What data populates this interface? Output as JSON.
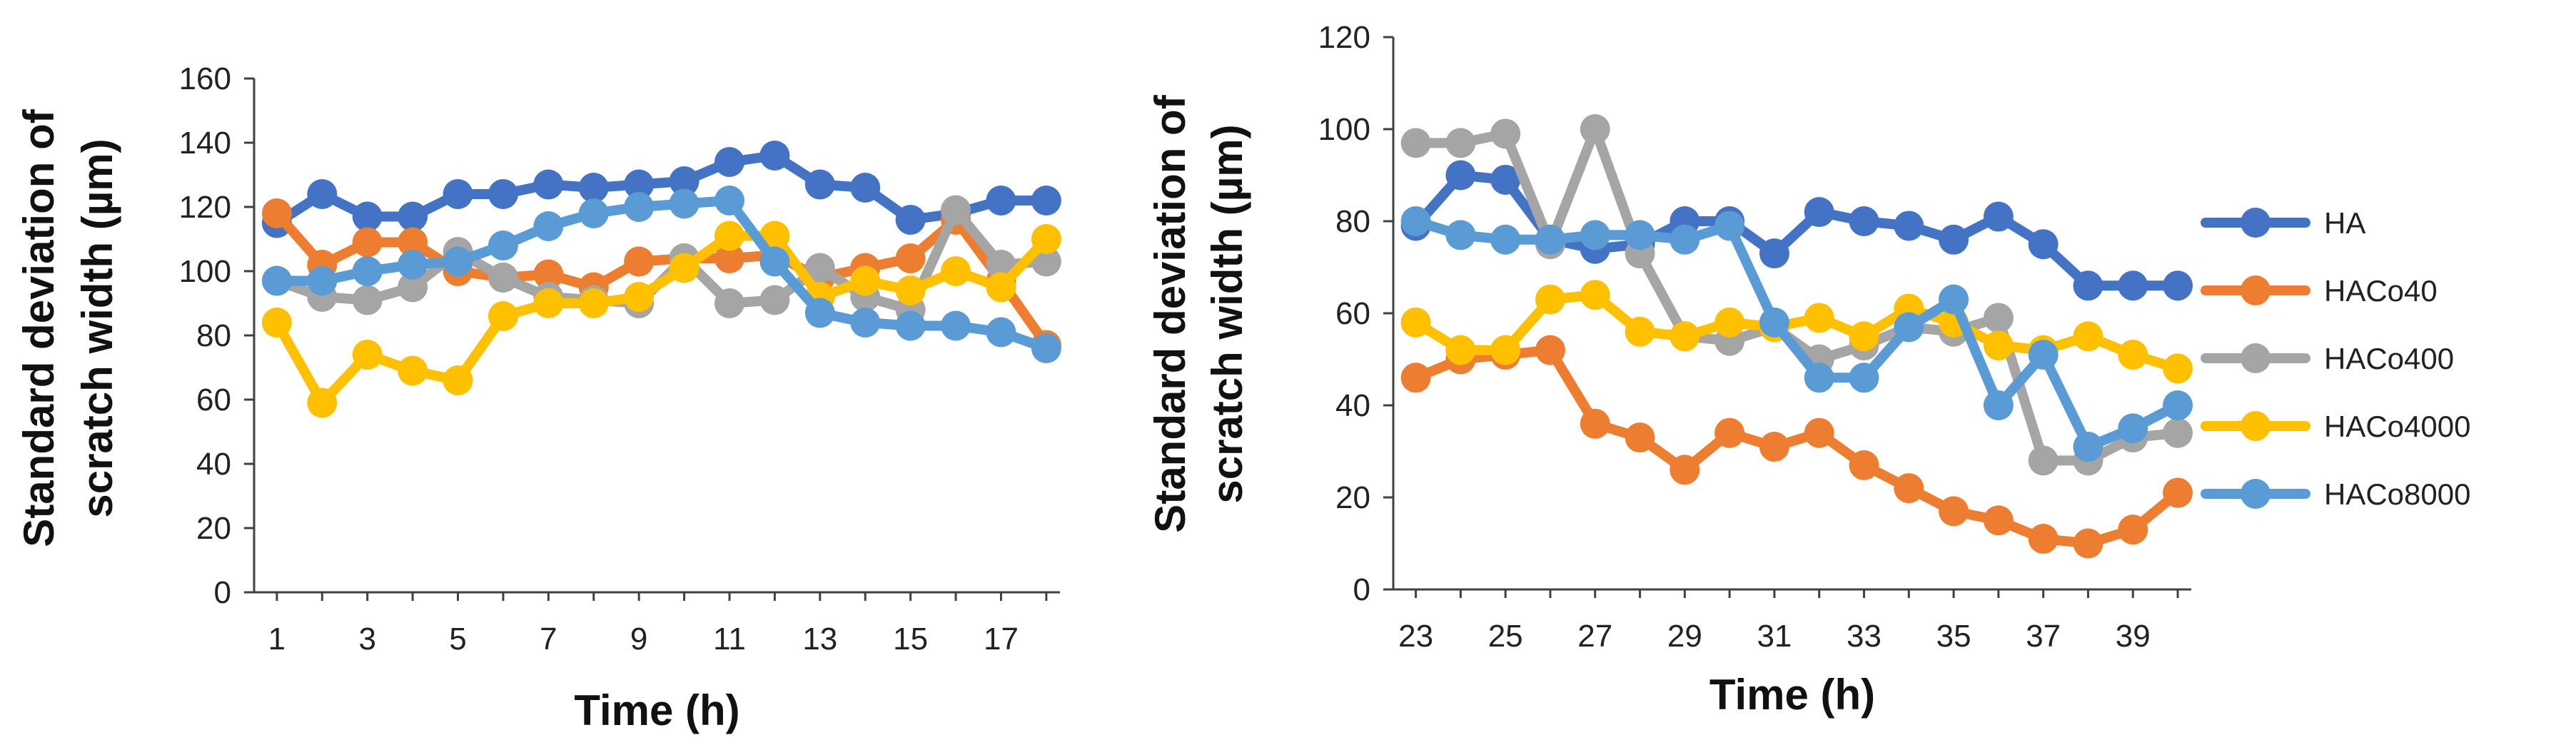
{
  "chart_data": [
    {
      "type": "line",
      "title": "",
      "xlabel": "Time (h)",
      "ylabel": [
        "Standard deviation of",
        "scratch width (µm)"
      ],
      "ylim": [
        0,
        160
      ],
      "yticks": [
        0,
        20,
        40,
        60,
        80,
        100,
        120,
        140,
        160
      ],
      "x": [
        1,
        2,
        3,
        4,
        5,
        6,
        7,
        8,
        9,
        10,
        11,
        12,
        13,
        14,
        15,
        16,
        17,
        18
      ],
      "xticks": [
        1,
        3,
        5,
        7,
        9,
        11,
        13,
        15,
        17
      ],
      "grid": false,
      "series": [
        {
          "name": "HA",
          "values": [
            115,
            124,
            117,
            117,
            124,
            124,
            127,
            126,
            127,
            128,
            134,
            136,
            127,
            126,
            116,
            118,
            122,
            122
          ]
        },
        {
          "name": "HACo40",
          "values": [
            118,
            102,
            109,
            109,
            100,
            98,
            99,
            95,
            103,
            104,
            104,
            105,
            98,
            101,
            104,
            116,
            97,
            77
          ]
        },
        {
          "name": "HACo400",
          "values": [
            97,
            92,
            91,
            95,
            106,
            98,
            92,
            91,
            90,
            104,
            90,
            91,
            101,
            92,
            88,
            119,
            102,
            103
          ]
        },
        {
          "name": "HACo4000",
          "values": [
            84,
            59,
            74,
            69,
            66,
            86,
            90,
            90,
            92,
            101,
            111,
            111,
            92,
            97,
            94,
            100,
            95,
            110
          ]
        },
        {
          "name": "HACo8000",
          "values": [
            97,
            97,
            100,
            102,
            103,
            108,
            114,
            118,
            120,
            121,
            122,
            103,
            87,
            84,
            83,
            83,
            81,
            76
          ]
        }
      ]
    },
    {
      "type": "line",
      "title": "",
      "xlabel": "Time (h)",
      "ylabel": [
        "Standard deviation of",
        "scratch width (µm)"
      ],
      "ylim": [
        0,
        120
      ],
      "yticks": [
        0,
        20,
        40,
        60,
        80,
        100,
        120
      ],
      "x": [
        23,
        24,
        25,
        26,
        27,
        28,
        29,
        30,
        31,
        32,
        33,
        34,
        35,
        36,
        37,
        38,
        39,
        40
      ],
      "xticks": [
        23,
        25,
        27,
        29,
        31,
        33,
        35,
        37,
        39
      ],
      "grid": false,
      "legend": "right",
      "series": [
        {
          "name": "HA",
          "values": [
            79,
            90,
            89,
            76,
            74,
            75,
            80,
            80,
            73,
            82,
            80,
            79,
            76,
            81,
            75,
            66,
            66,
            66
          ]
        },
        {
          "name": "HACo40",
          "values": [
            46,
            50,
            51,
            52,
            36,
            33,
            26,
            34,
            31,
            34,
            27,
            22,
            17,
            15,
            11,
            10,
            13,
            21
          ]
        },
        {
          "name": "HACo400",
          "values": [
            97,
            97,
            99,
            75,
            100,
            73,
            55,
            54,
            57,
            50,
            53,
            57,
            56,
            59,
            28,
            28,
            33,
            34
          ]
        },
        {
          "name": "HACo4000",
          "values": [
            58,
            52,
            52,
            63,
            64,
            56,
            55,
            58,
            57,
            59,
            55,
            61,
            58,
            53,
            52,
            55,
            51,
            48
          ]
        },
        {
          "name": "HACo8000",
          "values": [
            80,
            77,
            76,
            76,
            77,
            77,
            76,
            79,
            58,
            46,
            46,
            57,
            63,
            40,
            51,
            31,
            35,
            40
          ]
        }
      ]
    }
  ],
  "legend": {
    "entries": [
      "HA",
      "HACo40",
      "HACo400",
      "HACo4000",
      "HACo8000"
    ]
  },
  "colors": {
    "HA": "#4472C4",
    "HACo40": "#ED7D31",
    "HACo400": "#A5A5A5",
    "HACo4000": "#FFC000",
    "HACo8000": "#5B9BD5",
    "axis": "#404040"
  }
}
